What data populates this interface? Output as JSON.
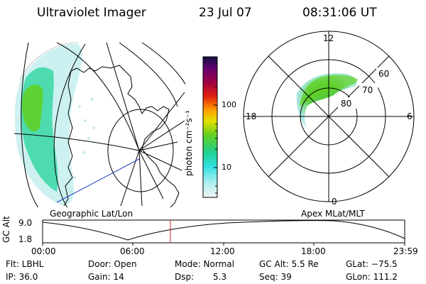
{
  "header": {
    "instrument": "Ultraviolet Imager",
    "date": "23 Jul 07",
    "time": "08:31:06 UT"
  },
  "colorbar": {
    "label": "photon cm⁻²s⁻¹",
    "ticks": [
      "100",
      "10"
    ]
  },
  "geo_panel": {
    "caption": "Geographic Lat/Lon"
  },
  "polar_panel": {
    "caption": "Apex MLat/MLT",
    "mlt_labels": {
      "top": "12",
      "left": "18",
      "right": "6",
      "bottom": "0"
    },
    "mlat_labels": [
      "60",
      "70",
      "80"
    ]
  },
  "altitude_plot": {
    "ylabel": "GC Alt",
    "yticks": [
      "9.0",
      "1.8"
    ],
    "xticks": [
      "00:00",
      "06:00",
      "12:00",
      "18:00",
      "23:59"
    ]
  },
  "info": {
    "flt": "Flt: LBHL",
    "ip": "IP: 36.0",
    "door": "Door: Open",
    "gain": "Gain: 14",
    "mode": "Mode: Normal",
    "dsp_label": "Dsp:",
    "dsp_value": "5.3",
    "gc_alt": "GC Alt: 5.5 Re",
    "seq": "Seq: 39",
    "glat": "GLat: −75.5",
    "glon": "GLon: 111.2"
  },
  "colors": {
    "aurora_low": "#b8ecec",
    "aurora_mid": "#40d8a8",
    "aurora_high": "#60d020",
    "time_marker": "#d02020",
    "sat_track": "#2040c0"
  }
}
